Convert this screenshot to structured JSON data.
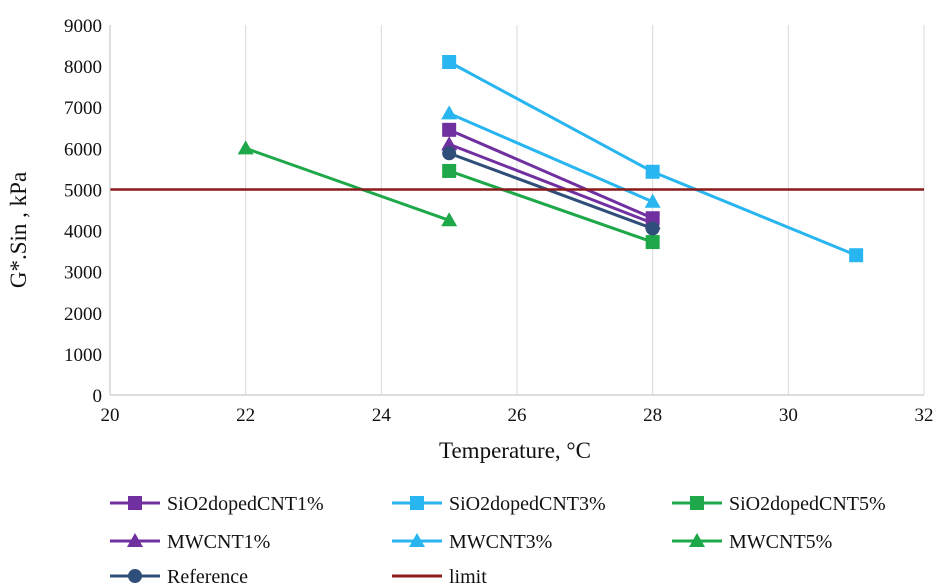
{
  "chart_data": {
    "type": "line",
    "title": "",
    "xlabel": "Temperature, °C",
    "ylabel": "G*.Sin , kPa",
    "xlim": [
      20,
      32
    ],
    "ylim": [
      0,
      9000
    ],
    "xticks": [
      20,
      22,
      24,
      26,
      28,
      30,
      32
    ],
    "yticks": [
      0,
      1000,
      2000,
      3000,
      4000,
      5000,
      6000,
      7000,
      8000,
      9000
    ],
    "grid": "vertical",
    "legend_position": "bottom",
    "series": [
      {
        "name": "SiO2dopedCNT1%",
        "color": "#7030a0",
        "marker": "square",
        "x": [
          25,
          28
        ],
        "y": [
          6450,
          4300
        ]
      },
      {
        "name": "SiO2dopedCNT3%",
        "color": "#29b6f0",
        "marker": "square",
        "x": [
          25,
          28,
          31
        ],
        "y": [
          8100,
          5430,
          3400
        ]
      },
      {
        "name": "SiO2dopedCNT5%",
        "color": "#1ea84a",
        "marker": "square",
        "x": [
          25,
          28
        ],
        "y": [
          5450,
          3720
        ]
      },
      {
        "name": "MWCNT1%",
        "color": "#7030a0",
        "marker": "triangle",
        "x": [
          25,
          28
        ],
        "y": [
          6100,
          4180
        ]
      },
      {
        "name": "MWCNT3%",
        "color": "#29b6f0",
        "marker": "triangle",
        "x": [
          25,
          28
        ],
        "y": [
          6850,
          4700
        ]
      },
      {
        "name": "MWCNT5%",
        "color": "#1ea84a",
        "marker": "triangle",
        "x": [
          22,
          25
        ],
        "y": [
          6000,
          4250
        ]
      },
      {
        "name": "Reference",
        "color": "#2f4f7a",
        "marker": "circle",
        "x": [
          25,
          28
        ],
        "y": [
          5880,
          4050
        ]
      },
      {
        "name": "limit",
        "color": "#8b1a1a",
        "marker": "none",
        "x": [
          20,
          32
        ],
        "y": [
          5000,
          5000
        ]
      }
    ]
  }
}
